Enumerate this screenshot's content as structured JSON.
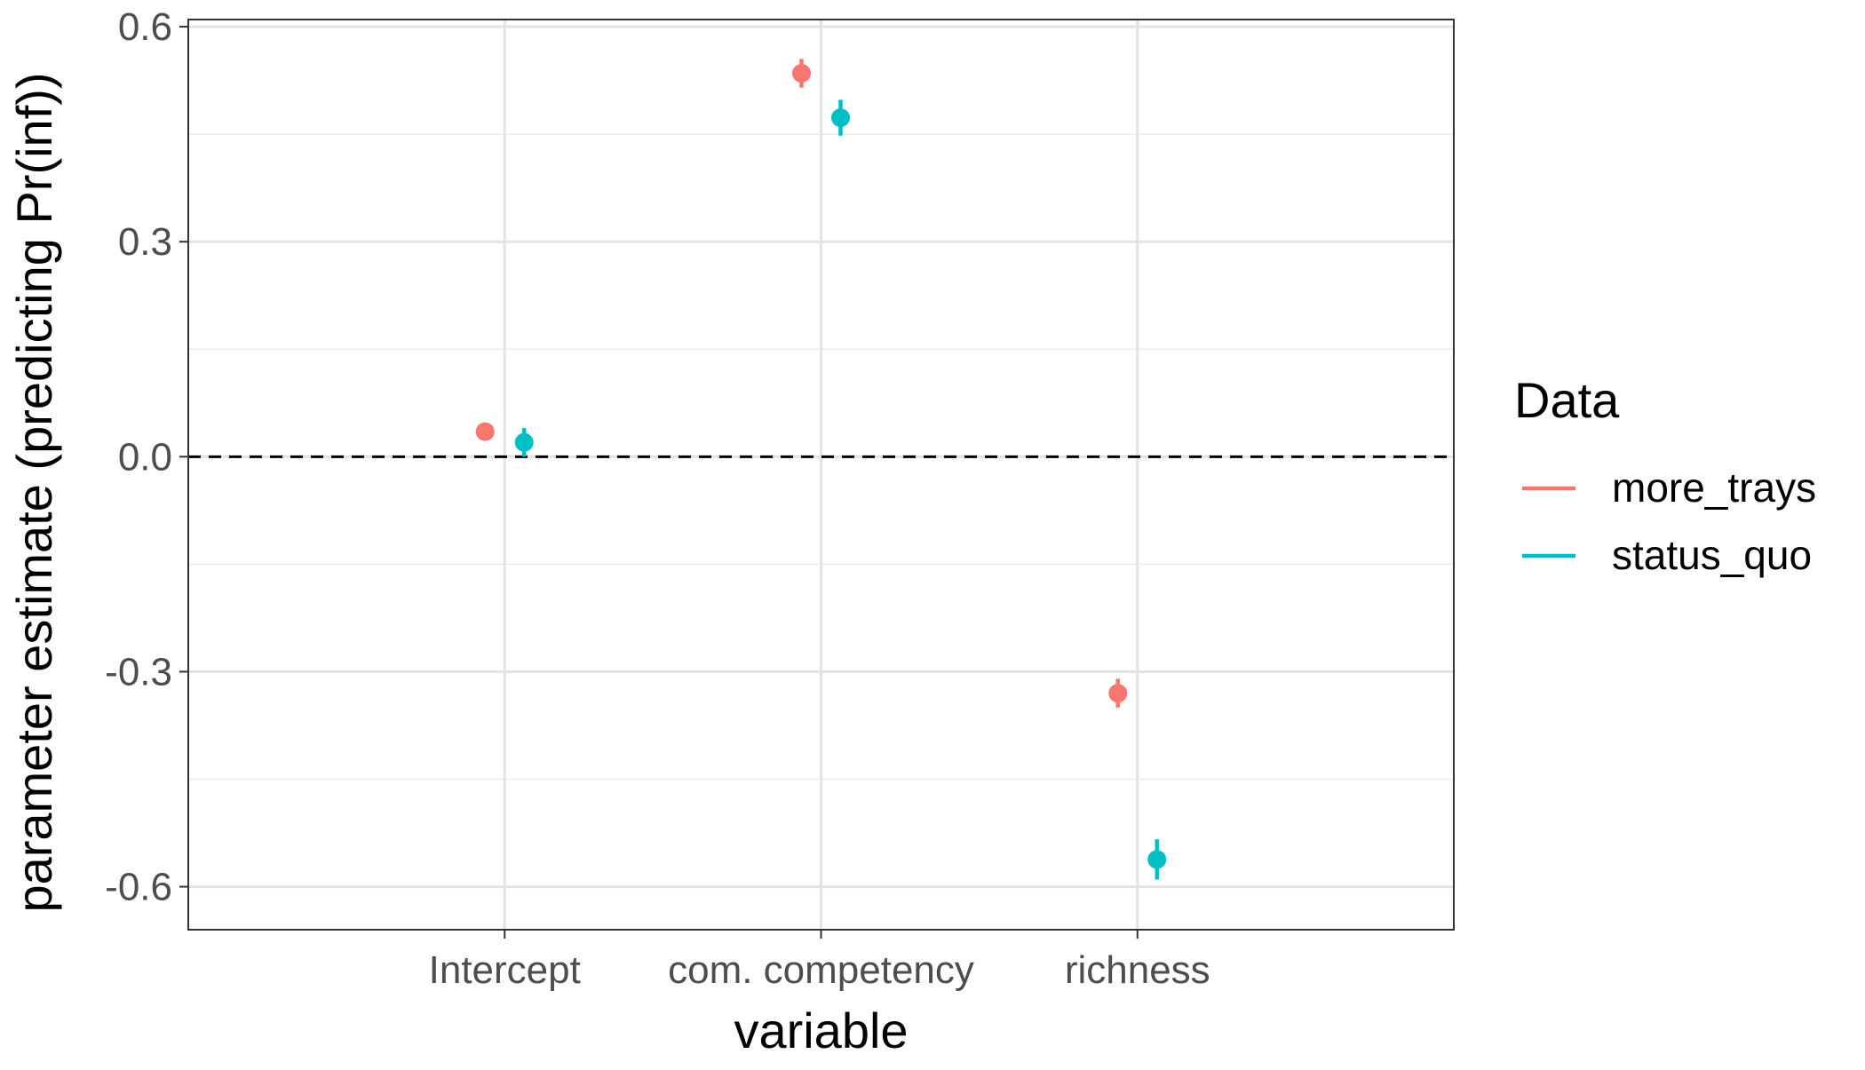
{
  "chart_data": {
    "type": "scatter",
    "title": "",
    "xlabel": "variable",
    "ylabel": "parameter estimate (predicting Pr(inf))",
    "categories": [
      "Intercept",
      "com. competency",
      "richness"
    ],
    "ylim": [
      -0.66,
      0.61
    ],
    "y_ticks": [
      0.6,
      0.3,
      0.0,
      -0.3,
      -0.6
    ],
    "y_tick_labels": [
      "0.6",
      "0.3",
      "0.0",
      "-0.3",
      "-0.6"
    ],
    "grid": true,
    "reference_line": {
      "y": 0.0,
      "style": "dashed",
      "color": "#000000"
    },
    "legend": {
      "title": "Data",
      "position": "right"
    },
    "series": [
      {
        "name": "more_trays",
        "color": "#F8766D",
        "values": [
          0.035,
          0.535,
          -0.33
        ],
        "lower": [
          0.025,
          0.515,
          -0.35
        ],
        "upper": [
          0.045,
          0.555,
          -0.31
        ]
      },
      {
        "name": "status_quo",
        "color": "#00BFC4",
        "values": [
          0.02,
          0.473,
          -0.562
        ],
        "lower": [
          0.0,
          0.448,
          -0.59
        ],
        "upper": [
          0.04,
          0.498,
          -0.534
        ]
      }
    ]
  }
}
